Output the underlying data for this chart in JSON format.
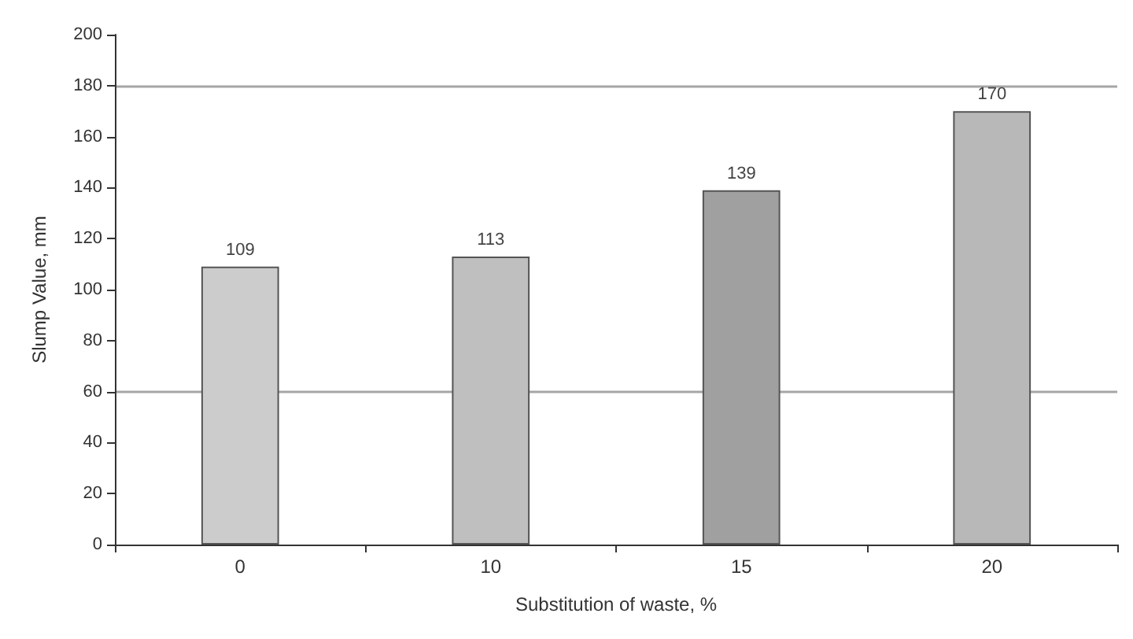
{
  "chart_data": {
    "type": "bar",
    "xlabel": "Substitution of waste, %",
    "ylabel": "Slump Value, mm",
    "categories": [
      "0",
      "10",
      "15",
      "20"
    ],
    "values": [
      109,
      113,
      139,
      170
    ],
    "colors": [
      "#cccccc",
      "#bfbfbf",
      "#a0a0a0",
      "#b8b8b8"
    ],
    "ylim": [
      0,
      200
    ],
    "yticks": [
      0,
      20,
      40,
      60,
      80,
      100,
      120,
      140,
      160,
      180,
      200
    ],
    "ref_lines": [
      {
        "axis": "y",
        "value": 60,
        "color": "#a6a6a6"
      },
      {
        "axis": "y",
        "value": 180,
        "color": "#a6a6a6"
      }
    ],
    "data_labels": true,
    "grid": false
  }
}
